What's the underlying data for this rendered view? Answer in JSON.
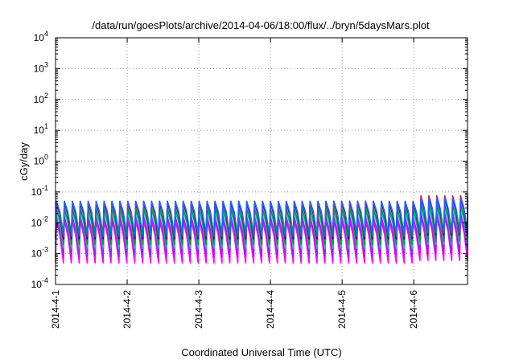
{
  "chart_data": {
    "type": "line",
    "title": "/data/run/goesPlots/archive/2014-04-06/18:00/flux/../bryn/5daysMars.plot",
    "xlabel": "Coordinated Universal Time (UTC)",
    "ylabel": "cGy/day",
    "y_scale": "log",
    "ylim": [
      0.0001,
      10000
    ],
    "y_ticks": [
      {
        "base": "10",
        "exp": "-4"
      },
      {
        "base": "10",
        "exp": "-3"
      },
      {
        "base": "10",
        "exp": "-2"
      },
      {
        "base": "10",
        "exp": "-1"
      },
      {
        "base": "10",
        "exp": "0"
      },
      {
        "base": "10",
        "exp": "1"
      },
      {
        "base": "10",
        "exp": "2"
      },
      {
        "base": "10",
        "exp": "3"
      },
      {
        "base": "10",
        "exp": "4"
      }
    ],
    "xlim": [
      "2014-04-01",
      "2014-04-06 18:00"
    ],
    "x_ticks": [
      "2014-4-1",
      "2014-4-2",
      "2014-4-3",
      "2014-4-4",
      "2014-4-5",
      "2014-4-6"
    ],
    "grid": true,
    "legend": "none",
    "cycles_per_day": 9,
    "series": [
      {
        "color": "#ff00ff",
        "peak": [
          0.012,
          0.012,
          0.012,
          0.012,
          0.012,
          0.016
        ],
        "trough": [
          0.0005,
          0.0005,
          0.0005,
          0.0005,
          0.0005,
          0.0006
        ]
      },
      {
        "color": "#a020f0",
        "peak": [
          0.016,
          0.016,
          0.016,
          0.016,
          0.016,
          0.021
        ],
        "trough": [
          0.0008,
          0.0008,
          0.0008,
          0.0008,
          0.0008,
          0.001
        ]
      },
      {
        "color": "#00cccc",
        "peak": [
          0.025,
          0.025,
          0.025,
          0.025,
          0.025,
          0.032
        ],
        "trough": [
          0.0015,
          0.0015,
          0.0015,
          0.0015,
          0.0015,
          0.002
        ]
      },
      {
        "color": "#00aa00",
        "peak": [
          0.03,
          0.03,
          0.03,
          0.03,
          0.03,
          0.04
        ],
        "trough": [
          0.002,
          0.002,
          0.002,
          0.002,
          0.002,
          0.0025
        ]
      },
      {
        "color": "#0000ff",
        "peak": [
          0.045,
          0.045,
          0.045,
          0.045,
          0.045,
          0.06
        ],
        "trough": [
          0.003,
          0.003,
          0.003,
          0.003,
          0.003,
          0.004
        ]
      },
      {
        "color": "#ff0000",
        "peak": [
          0.05,
          0.05,
          0.05,
          0.05,
          0.05,
          0.075
        ],
        "trough": [
          0.0035,
          0.0035,
          0.0035,
          0.0035,
          0.0035,
          0.0045
        ]
      },
      {
        "color": "#1e66ff",
        "peak": [
          0.05,
          0.05,
          0.05,
          0.05,
          0.05,
          0.065
        ],
        "trough": [
          0.004,
          0.004,
          0.004,
          0.004,
          0.004,
          0.005
        ]
      }
    ]
  }
}
